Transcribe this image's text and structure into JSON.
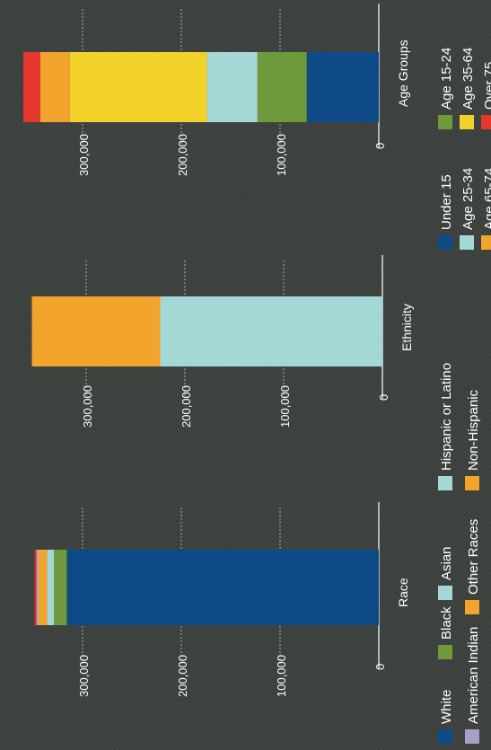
{
  "chart_data": [
    {
      "type": "bar",
      "stacked": true,
      "category": "Race",
      "axis_ticks": [
        "0",
        "100,000",
        "200,000",
        "300,000"
      ],
      "ylim": [
        0,
        350000
      ],
      "series": [
        {
          "name": "White",
          "value": 316000,
          "color": "#0d4a86"
        },
        {
          "name": "Black",
          "value": 13000,
          "color": "#6e9a3c"
        },
        {
          "name": "Asian",
          "value": 7000,
          "color": "#a4d8d6"
        },
        {
          "name": "Other Races",
          "value": 9000,
          "color": "#f2a42d"
        },
        {
          "name": "American Indian",
          "value": 2000,
          "color": "#a79fc9"
        },
        {
          "name": "",
          "value": 2000,
          "color": "#c9262d"
        }
      ],
      "legend": [
        "White",
        "Black",
        "Asian",
        "American Indian",
        "Other Races"
      ]
    },
    {
      "type": "bar",
      "stacked": true,
      "category": "Ethnicity",
      "axis_ticks": [
        "0",
        "100,000",
        "200,000",
        "300,000"
      ],
      "ylim": [
        0,
        350000
      ],
      "series": [
        {
          "name": "Hispanic or Latino",
          "value": 225000,
          "color": "#a4d8d6"
        },
        {
          "name": "Non-Hispanic",
          "value": 130000,
          "color": "#f2a42d"
        }
      ],
      "legend": [
        "Hispanic or Latino",
        "Non-Hispanic"
      ]
    },
    {
      "type": "bar",
      "stacked": true,
      "category": "Age Groups",
      "axis_ticks": [
        "0",
        "100,000",
        "200,000",
        "300,000"
      ],
      "ylim": [
        0,
        350000
      ],
      "series": [
        {
          "name": "Under 15",
          "value": 73000,
          "color": "#0d4a86"
        },
        {
          "name": "Age 15-24",
          "value": 50000,
          "color": "#6e9a3c"
        },
        {
          "name": "Age 25-34",
          "value": 51000,
          "color": "#a4d8d6"
        },
        {
          "name": "Age 35-64",
          "value": 139000,
          "color": "#f2d228"
        },
        {
          "name": "Age 65-74",
          "value": 30000,
          "color": "#f2a42d"
        },
        {
          "name": "Over 75",
          "value": 17000,
          "color": "#e5372e"
        }
      ],
      "legend": [
        "Under 15",
        "Age 15-24",
        "Age 25-34",
        "Age 35-64",
        "Age 65-74",
        "Over 75"
      ]
    }
  ]
}
